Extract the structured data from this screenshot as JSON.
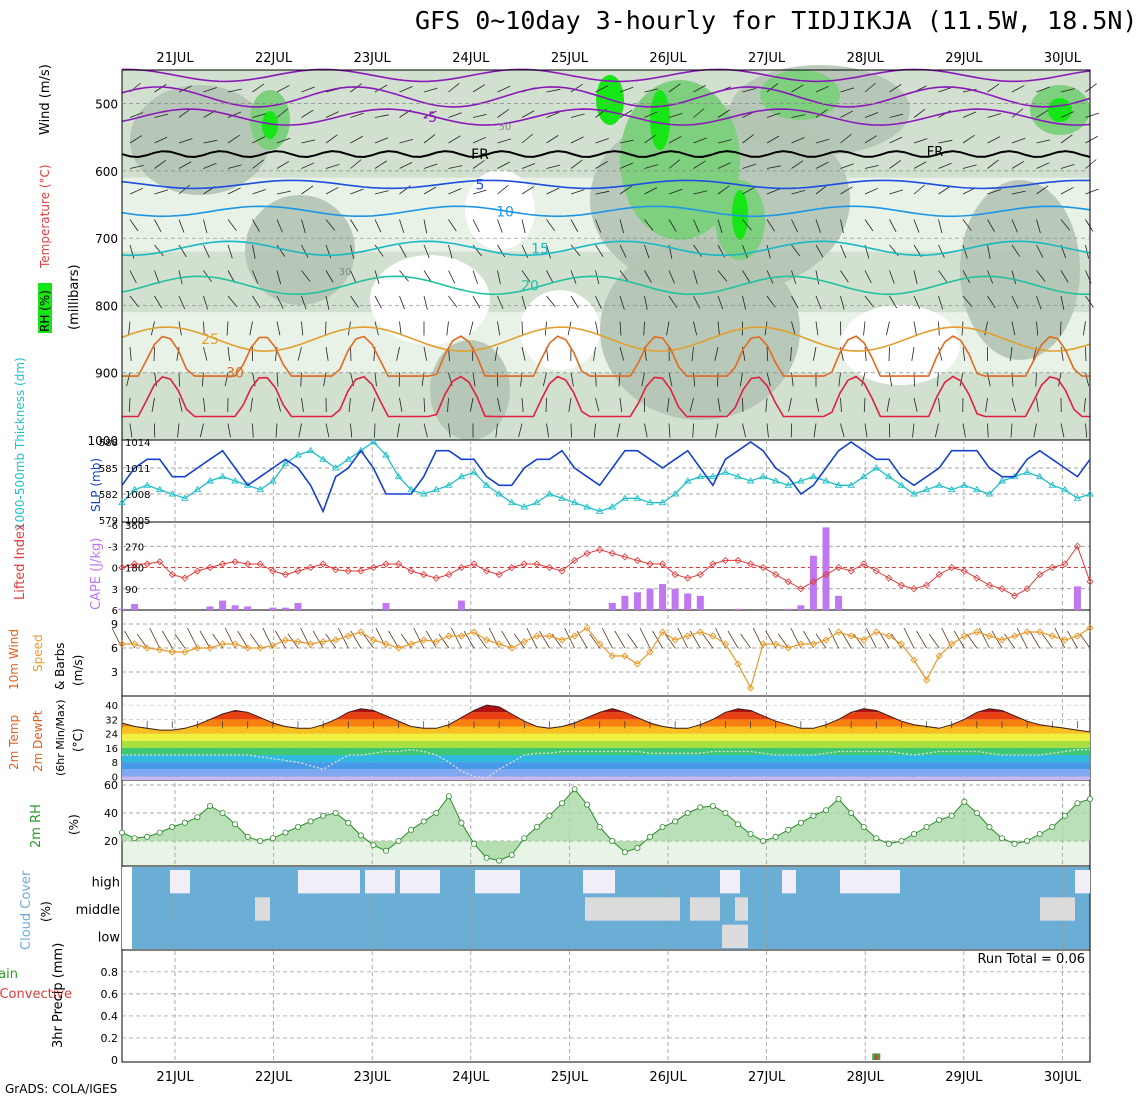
{
  "title": "GFS 0~10day 3-hourly for TIDJIKJA (11.5W, 18.5N)",
  "credit": "GrADS: COLA/IGES",
  "dates": [
    "21JUL",
    "22JUL",
    "23JUL",
    "24JUL",
    "25JUL",
    "26JUL",
    "27JUL",
    "28JUL",
    "29JUL",
    "30JUL"
  ],
  "colors": {
    "rh_dark": "#b4c4b4",
    "rh_mid": "#d2e0d0",
    "rh_light": "#e8f2e6",
    "rh_green": "#7ed07e",
    "rh_bright": "#16e616",
    "temp_cold": "#8a1ab8",
    "temp_blue1": "#1c4ee0",
    "temp_blue2": "#1e96e6",
    "temp_cyan": "#18b8c4",
    "temp_green": "#22c2a0",
    "temp_orange": "#e0a030",
    "temp_dorange": "#e06a20",
    "temp_red": "#e02040",
    "slp": "#1640d0",
    "thickness": "#20c0c8",
    "lifted": "#e03a3a",
    "cape": "#c078f0",
    "wind": "#e89a2c",
    "cloud": "#6aaed6",
    "cloud_clear": "#f2eef8",
    "rh2m": "#6cc46c",
    "precip_total": "#44a044",
    "precip_conv": "#e03a3a"
  },
  "chart_data": [
    {
      "type": "contour",
      "panel": "vertical profile",
      "ylabel_parts": [
        "RH (%)",
        "Temperature (°C)",
        "Wind (m/s)"
      ],
      "yunit": "(millibars)",
      "ylim": [
        1000,
        450
      ],
      "yticks": [
        500,
        600,
        700,
        800,
        900,
        1000
      ],
      "temperature_isotherms": [
        {
          "label": "-5",
          "level_mb": 520
        },
        {
          "label": "FR",
          "level_mb": 575
        },
        {
          "label": "5",
          "level_mb": 620
        },
        {
          "label": "10",
          "level_mb": 660
        },
        {
          "label": "15",
          "level_mb": 715
        },
        {
          "label": "20",
          "level_mb": 770
        },
        {
          "label": "25",
          "level_mb": 850
        },
        {
          "label": "30",
          "level_mb": 900
        }
      ],
      "rh_labels": [
        "50",
        "30"
      ]
    },
    {
      "type": "line",
      "panel": "SLP and thickness",
      "ylabel_left": "1000-500mb Thickness (dm)",
      "ylabel_right": "SLP (mb)",
      "left_ticks": [
        579,
        582,
        585,
        588
      ],
      "right_ticks": [
        1005,
        1008,
        1011,
        1014
      ],
      "ylim_left": [
        579,
        588
      ],
      "ylim_right": [
        1005,
        1014
      ],
      "series": [
        {
          "name": "SLP (mb)",
          "axis": "right",
          "values": [
            1009,
            1011,
            1012,
            1012,
            1010,
            1010,
            1011,
            1012,
            1013,
            1011,
            1009,
            1010,
            1011,
            1012,
            1011,
            1009,
            1006,
            1010,
            1011,
            1013,
            1011,
            1008,
            1008,
            1008,
            1010,
            1013,
            1013,
            1012,
            1012,
            1010,
            1009,
            1009,
            1011,
            1012,
            1012,
            1013,
            1011,
            1010,
            1009,
            1011,
            1013,
            1013,
            1012,
            1011,
            1012,
            1013,
            1011,
            1009,
            1012,
            1013,
            1014,
            1013,
            1011,
            1010,
            1008,
            1009,
            1011,
            1013,
            1014,
            1013,
            1012,
            1012,
            1010,
            1009,
            1010,
            1011,
            1013,
            1013,
            1013,
            1011,
            1010,
            1010,
            1012,
            1013,
            1012,
            1011,
            1010,
            1012
          ]
        },
        {
          "name": "1000-500mb Thickness (dm)",
          "axis": "left",
          "values": [
            581,
            582.5,
            583,
            582.5,
            582,
            581.5,
            582.5,
            583.5,
            584,
            583.5,
            583,
            582.5,
            583.5,
            585.5,
            586.5,
            587,
            586,
            585,
            586,
            587,
            588,
            586.5,
            584,
            582.5,
            582,
            582.5,
            583,
            584,
            584.5,
            583,
            582,
            581,
            580.5,
            581,
            582,
            581.5,
            581,
            580.5,
            580,
            580.5,
            581.5,
            581.5,
            581,
            581,
            582,
            583.5,
            584,
            584,
            584.5,
            584,
            583.5,
            584,
            583.5,
            583,
            583.5,
            584,
            583.5,
            583,
            583,
            584,
            585,
            584,
            583,
            582,
            582.5,
            583,
            582.5,
            583,
            582.5,
            582,
            583.5,
            584,
            584.5,
            584,
            583,
            582.5,
            581.5,
            582
          ]
        }
      ]
    },
    {
      "type": "bar+line",
      "panel": "Lifted Index and CAPE",
      "ylabel_left": "Lifted Index",
      "ylabel_right": "CAPE (J/kg)",
      "left_ticks": [
        -6,
        -3,
        0,
        3,
        6
      ],
      "right_ticks": [
        90,
        180,
        270,
        360
      ],
      "ylim_left": [
        6,
        -6
      ],
      "ylim_right": [
        0,
        360
      ],
      "series": [
        {
          "name": "Lifted Index",
          "values": [
            0,
            -0.5,
            -0.5,
            -0.8,
            1,
            1.5,
            0.5,
            0,
            -0.5,
            -0.8,
            -0.5,
            -0.5,
            0.5,
            1,
            0.5,
            0,
            -0.5,
            0.3,
            0.5,
            0.5,
            0,
            -0.5,
            -0.5,
            0.5,
            1,
            1.5,
            1,
            0,
            -0.5,
            0.5,
            1,
            0,
            -0.5,
            -0.5,
            0,
            0.5,
            -1,
            -2,
            -2.5,
            -2,
            -1.5,
            -1,
            -0.5,
            -0.5,
            1,
            1.5,
            1,
            -0.5,
            -1,
            -1,
            -0.5,
            0,
            1,
            2,
            3,
            2,
            1,
            0,
            0.5,
            -0.5,
            0.5,
            1.5,
            2.5,
            3,
            2.5,
            1,
            0,
            0.5,
            1.5,
            2.5,
            3,
            4,
            3,
            1,
            0,
            -0.5,
            -3,
            2
          ]
        },
        {
          "name": "CAPE (J/kg)",
          "values": [
            5,
            25,
            0,
            0,
            0,
            0,
            0,
            15,
            40,
            20,
            15,
            0,
            10,
            10,
            30,
            0,
            0,
            0,
            0,
            0,
            0,
            30,
            0,
            0,
            0,
            0,
            0,
            40,
            0,
            0,
            0,
            0,
            0,
            0,
            0,
            0,
            0,
            0,
            0,
            30,
            60,
            75,
            90,
            110,
            90,
            70,
            60,
            0,
            0,
            5,
            0,
            0,
            0,
            5,
            20,
            230,
            350,
            60,
            0,
            0,
            0,
            0,
            0,
            0,
            0,
            0,
            0,
            0,
            0,
            0,
            0,
            0,
            0,
            0,
            0,
            0,
            100,
            0
          ]
        }
      ]
    },
    {
      "type": "line",
      "panel": "10m Wind",
      "ylabel": "10m Wind Speed & Barbs (m/s)",
      "yticks": [
        3,
        6,
        9
      ],
      "ylim": [
        0,
        10.5
      ],
      "series": [
        {
          "name": "10m Wind Speed",
          "values": [
            6.5,
            6.5,
            6,
            5.8,
            5.5,
            5.5,
            6,
            6,
            6.5,
            6.5,
            6,
            6,
            6.3,
            7,
            6.8,
            6.5,
            6.8,
            7,
            7.5,
            8,
            7,
            6.5,
            6,
            6.5,
            7,
            6.8,
            7.5,
            7.5,
            8,
            7,
            6.5,
            6,
            6.8,
            7.5,
            7.5,
            7,
            7.5,
            8.5,
            6.5,
            5,
            5,
            4,
            5.5,
            8,
            7,
            7.5,
            8,
            7.5,
            6.5,
            4,
            1,
            6.5,
            6.5,
            6,
            6.5,
            6.5,
            7,
            8,
            7.5,
            7,
            8,
            7.5,
            6.5,
            4.5,
            2,
            5,
            6.5,
            7.5,
            8,
            7.5,
            7,
            7.5,
            8,
            8,
            7.5,
            7,
            7.5,
            8.5
          ]
        }
      ]
    },
    {
      "type": "area",
      "panel": "2m Temp / DewPt",
      "ylabel": "2m Temp 2m DewPt (6hr Min/Max) (°C)",
      "yticks": [
        0,
        8,
        16,
        24,
        32,
        40
      ],
      "ylim": [
        -2,
        44
      ],
      "series": [
        {
          "name": "2m Temp",
          "values": [
            30,
            28,
            27,
            26,
            26,
            27,
            29,
            32,
            35,
            37,
            36,
            33,
            30,
            28,
            27,
            27,
            29,
            32,
            36,
            38,
            37,
            34,
            31,
            28,
            27,
            27,
            29,
            33,
            37,
            40,
            39,
            35,
            31,
            28,
            27,
            28,
            30,
            33,
            36,
            38,
            36,
            33,
            30,
            28,
            27,
            27,
            29,
            32,
            36,
            38,
            37,
            34,
            31,
            29,
            27,
            27,
            29,
            32,
            36,
            38,
            37,
            34,
            31,
            29,
            28,
            27,
            29,
            32,
            36,
            38,
            37,
            34,
            31,
            29,
            28,
            27,
            26,
            25
          ]
        },
        {
          "name": "2m DewPt",
          "values": [
            12,
            12,
            12,
            12,
            12,
            12,
            12,
            12,
            12,
            12,
            12,
            11,
            10,
            9,
            8,
            6,
            4,
            8,
            12,
            12,
            13,
            14,
            14,
            15,
            14,
            12,
            8,
            3,
            0,
            -1,
            4,
            8,
            12,
            13,
            13,
            14,
            14,
            14,
            14,
            14,
            14,
            14,
            13,
            13,
            13,
            13,
            13,
            14,
            14,
            14,
            14,
            13,
            12,
            12,
            12,
            12,
            13,
            14,
            14,
            14,
            14,
            14,
            13,
            12,
            13,
            14,
            14,
            14,
            14,
            13,
            12,
            12,
            12,
            12,
            13,
            14,
            15,
            15
          ]
        }
      ]
    },
    {
      "type": "area",
      "panel": "2m RH",
      "ylabel": "2m RH (%)",
      "yticks": [
        20,
        40,
        60
      ],
      "ylim": [
        0,
        60
      ],
      "series": [
        {
          "name": "2m RH",
          "values": [
            26,
            22,
            23,
            26,
            30,
            33,
            37,
            45,
            40,
            32,
            23,
            20,
            22,
            26,
            30,
            34,
            38,
            40,
            33,
            24,
            17,
            13,
            20,
            28,
            34,
            40,
            52,
            33,
            18,
            8,
            6,
            10,
            22,
            30,
            38,
            47,
            57,
            46,
            30,
            20,
            12,
            15,
            23,
            30,
            34,
            40,
            44,
            45,
            40,
            32,
            25,
            20,
            23,
            28,
            33,
            38,
            42,
            50,
            40,
            30,
            22,
            18,
            20,
            25,
            30,
            35,
            38,
            48,
            40,
            30,
            22,
            18,
            20,
            25,
            30,
            38,
            47,
            50
          ]
        }
      ]
    },
    {
      "type": "heatmap",
      "panel": "Cloud Cover",
      "ylabel": "Cloud Cover (%)",
      "rows": [
        "high",
        "middle",
        "low"
      ]
    },
    {
      "type": "bar",
      "panel": "3hr Precip",
      "ylabel": "3hr Precip (mm)",
      "legend": [
        "Total / Rain",
        "Convective"
      ],
      "yticks": [
        0,
        0.2,
        0.4,
        0.6,
        0.8
      ],
      "ylim": [
        0,
        0.98
      ],
      "annotation": "Run Total = 0.06",
      "series": [
        {
          "name": "Total",
          "values": [
            {
              "index": 60,
              "value": 0.06
            }
          ]
        },
        {
          "name": "Convective",
          "values": [
            {
              "index": 60,
              "value": 0.05
            }
          ]
        }
      ]
    }
  ]
}
